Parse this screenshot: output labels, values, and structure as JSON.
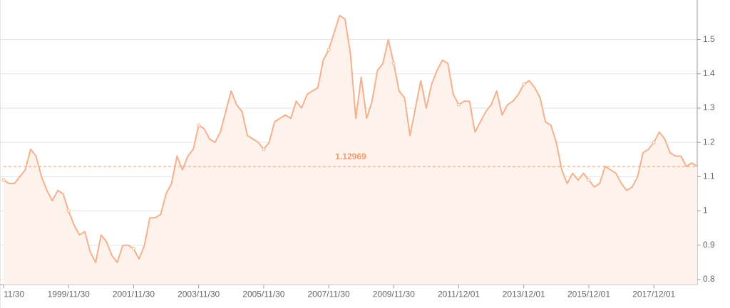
{
  "chart_data": {
    "type": "line",
    "categories": [
      "11/30",
      null,
      null,
      null,
      null,
      null,
      null,
      null,
      null,
      null,
      null,
      null,
      "1999/11/30",
      null,
      null,
      null,
      null,
      null,
      null,
      null,
      null,
      null,
      null,
      null,
      "2001/11/30",
      null,
      null,
      null,
      null,
      null,
      null,
      null,
      null,
      null,
      null,
      null,
      "2003/11/30",
      null,
      null,
      null,
      null,
      null,
      null,
      null,
      null,
      null,
      null,
      null,
      "2005/11/30",
      null,
      null,
      null,
      null,
      null,
      null,
      null,
      null,
      null,
      null,
      null,
      "2007/11/30",
      null,
      null,
      null,
      null,
      null,
      null,
      null,
      null,
      null,
      null,
      null,
      "2009/11/30",
      null,
      null,
      null,
      null,
      null,
      null,
      null,
      null,
      null,
      null,
      null,
      "2011/12/01",
      null,
      null,
      null,
      null,
      null,
      null,
      null,
      null,
      null,
      null,
      null,
      "2013/12/01",
      null,
      null,
      null,
      null,
      null,
      null,
      null,
      null,
      null,
      null,
      null,
      "2015/12/01",
      null,
      null,
      null,
      null,
      null,
      null,
      null,
      null,
      null,
      null,
      null,
      "2017/12/01",
      null,
      null,
      null,
      null,
      null,
      null,
      null,
      null
    ],
    "series": [
      {
        "color": "#f6b08c",
        "fill": "#fdf2ec",
        "values": [
          1.09,
          1.08,
          1.08,
          1.1,
          1.12,
          1.18,
          1.16,
          1.1,
          1.06,
          1.03,
          1.06,
          1.05,
          1.0,
          0.96,
          0.93,
          0.94,
          0.88,
          0.85,
          0.93,
          0.91,
          0.87,
          0.85,
          0.9,
          0.9,
          0.89,
          0.86,
          0.9,
          0.98,
          0.98,
          0.99,
          1.05,
          1.08,
          1.16,
          1.12,
          1.16,
          1.18,
          1.25,
          1.24,
          1.21,
          1.2,
          1.23,
          1.29,
          1.35,
          1.31,
          1.29,
          1.22,
          1.21,
          1.2,
          1.18,
          1.2,
          1.26,
          1.27,
          1.28,
          1.27,
          1.32,
          1.3,
          1.34,
          1.35,
          1.36,
          1.44,
          1.47,
          1.52,
          1.57,
          1.56,
          1.46,
          1.27,
          1.39,
          1.27,
          1.32,
          1.41,
          1.43,
          1.5,
          1.43,
          1.35,
          1.33,
          1.22,
          1.3,
          1.38,
          1.3,
          1.37,
          1.41,
          1.44,
          1.43,
          1.34,
          1.31,
          1.32,
          1.32,
          1.23,
          1.26,
          1.29,
          1.31,
          1.35,
          1.28,
          1.31,
          1.32,
          1.34,
          1.37,
          1.38,
          1.36,
          1.33,
          1.26,
          1.25,
          1.2,
          1.12,
          1.08,
          1.11,
          1.09,
          1.11,
          1.09,
          1.07,
          1.08,
          1.13,
          1.12,
          1.11,
          1.08,
          1.06,
          1.07,
          1.1,
          1.17,
          1.18,
          1.2,
          1.23,
          1.21,
          1.17,
          1.16,
          1.16,
          1.13,
          1.14,
          1.13
        ]
      }
    ],
    "reference_line": {
      "value": 1.12969,
      "color": "#f29a6c"
    },
    "ylim": [
      0.785,
      1.6
    ],
    "yticks": [
      0.8,
      0.9,
      1,
      1.1,
      1.2,
      1.3,
      1.4,
      1.5
    ],
    "y_axis_side": "right",
    "grid": true
  }
}
